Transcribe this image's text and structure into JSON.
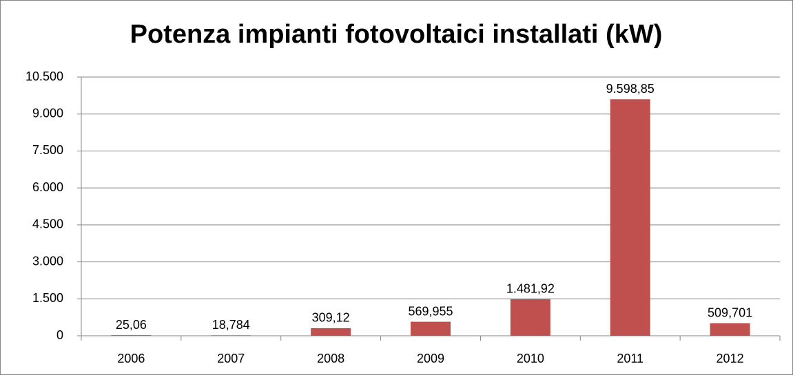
{
  "chart_data": {
    "type": "bar",
    "title": "Potenza impianti fotovoltaici installati (kW)",
    "categories": [
      "2006",
      "2007",
      "2008",
      "2009",
      "2010",
      "2011",
      "2012"
    ],
    "values": [
      25.06,
      18.784,
      309.12,
      569.955,
      1481.92,
      9598.85,
      509.701
    ],
    "value_labels": [
      "25,06",
      "18,784",
      "309,12",
      "569,955",
      "1.481,92",
      "9.598,85",
      "509,701"
    ],
    "color": "#c0504d",
    "ylim": [
      0,
      10500
    ],
    "yticks": [
      0,
      {
        "value": 1500,
        "label": "1.500"
      },
      {
        "value": 3000,
        "label": "3.000"
      },
      {
        "value": 4500,
        "label": "4.500"
      },
      {
        "value": 6000,
        "label": "6.000"
      },
      {
        "value": 7500,
        "label": "7.500"
      },
      {
        "value": 9000,
        "label": "9.000"
      },
      {
        "value": 10500,
        "label": "10.500"
      }
    ],
    "grid": true
  }
}
